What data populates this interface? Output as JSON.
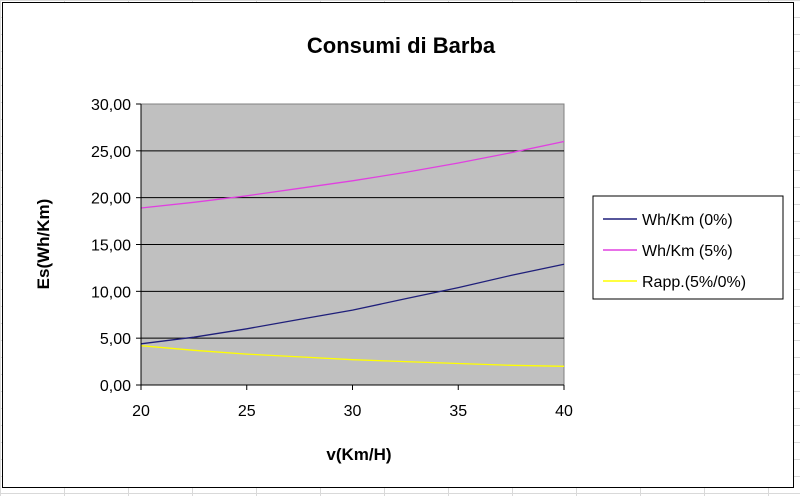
{
  "chart_data": {
    "type": "line",
    "title": "Consumi di Barba",
    "xlabel": "v(Km/H)",
    "ylabel": "Es(Wh/Km)",
    "xlim": [
      20,
      40
    ],
    "ylim": [
      0,
      30
    ],
    "x_ticks": [
      "20",
      "25",
      "30",
      "35",
      "40"
    ],
    "y_ticks": [
      "0,00",
      "5,00",
      "10,00",
      "15,00",
      "20,00",
      "25,00",
      "30,00"
    ],
    "grid": true,
    "plot_background": "#c0c0c0",
    "legend_position": "right",
    "series": [
      {
        "name": "Wh/Km (0%)",
        "color": "#1f1f7a",
        "x": [
          20,
          22.5,
          25,
          27.5,
          30,
          32.5,
          35,
          37.5,
          40
        ],
        "y": [
          4.4,
          5.1,
          6.0,
          7.0,
          8.0,
          9.2,
          10.4,
          11.7,
          12.9
        ]
      },
      {
        "name": "Wh/Km (5%)",
        "color": "#e040e0",
        "x": [
          20,
          22.5,
          25,
          27.5,
          30,
          32.5,
          35,
          37.5,
          40
        ],
        "y": [
          18.9,
          19.5,
          20.2,
          21.0,
          21.8,
          22.7,
          23.7,
          24.8,
          26.0
        ]
      },
      {
        "name": "Rapp.(5%/0%)",
        "color": "#ffff00",
        "x": [
          20,
          22.5,
          25,
          27.5,
          30,
          32.5,
          35,
          37.5,
          40
        ],
        "y": [
          4.2,
          3.7,
          3.3,
          3.0,
          2.7,
          2.5,
          2.3,
          2.1,
          2.0
        ]
      }
    ]
  }
}
